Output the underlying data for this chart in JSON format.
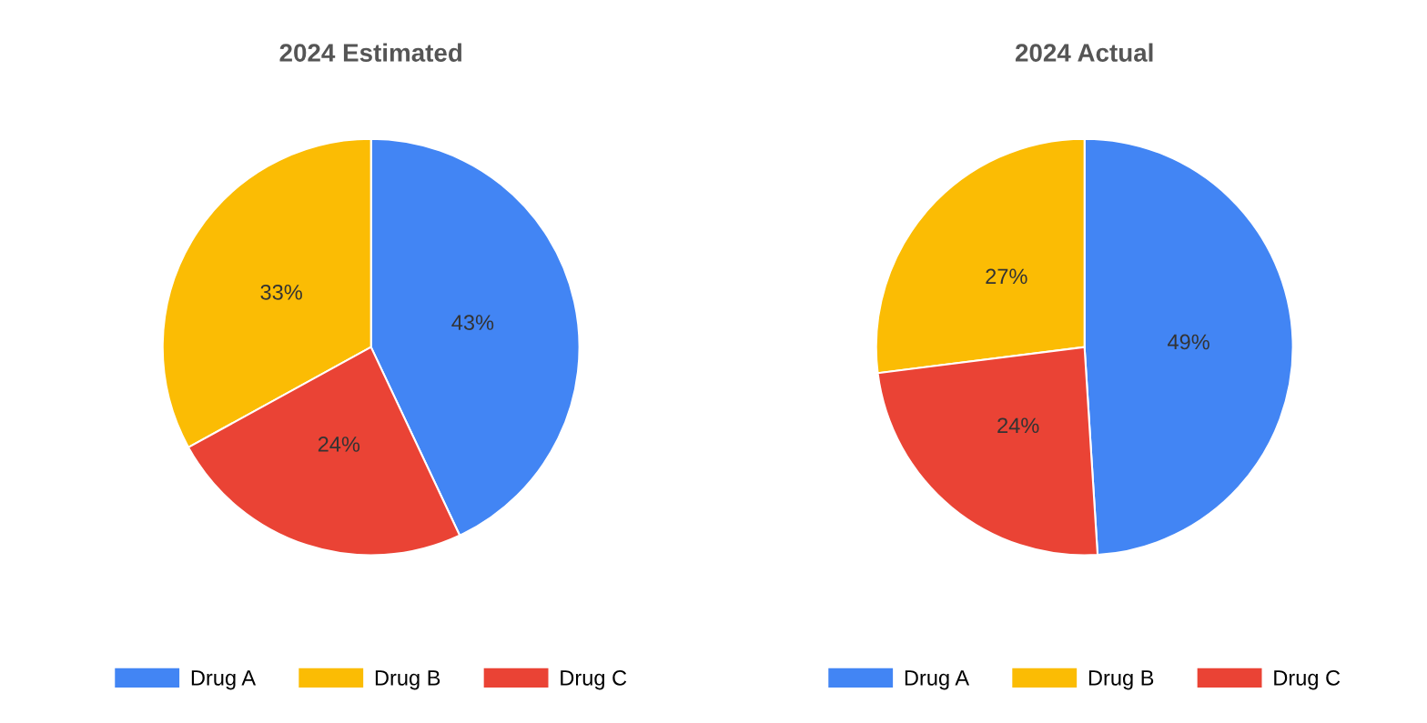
{
  "chart_data": [
    {
      "type": "pie",
      "title": "2024 Estimated",
      "categories": [
        "Drug A",
        "Drug B",
        "Drug C"
      ],
      "values": [
        43,
        33,
        24
      ],
      "value_labels": [
        "43%",
        "33%",
        "24%"
      ],
      "colors": [
        "#4285f4",
        "#fbbc04",
        "#ea4335"
      ],
      "legend": "bottom"
    },
    {
      "type": "pie",
      "title": "2024 Actual",
      "categories": [
        "Drug A",
        "Drug B",
        "Drug C"
      ],
      "values": [
        49,
        27,
        24
      ],
      "value_labels": [
        "49%",
        "27%",
        "24%"
      ],
      "colors": [
        "#4285f4",
        "#fbbc04",
        "#ea4335"
      ],
      "legend": "bottom"
    }
  ]
}
